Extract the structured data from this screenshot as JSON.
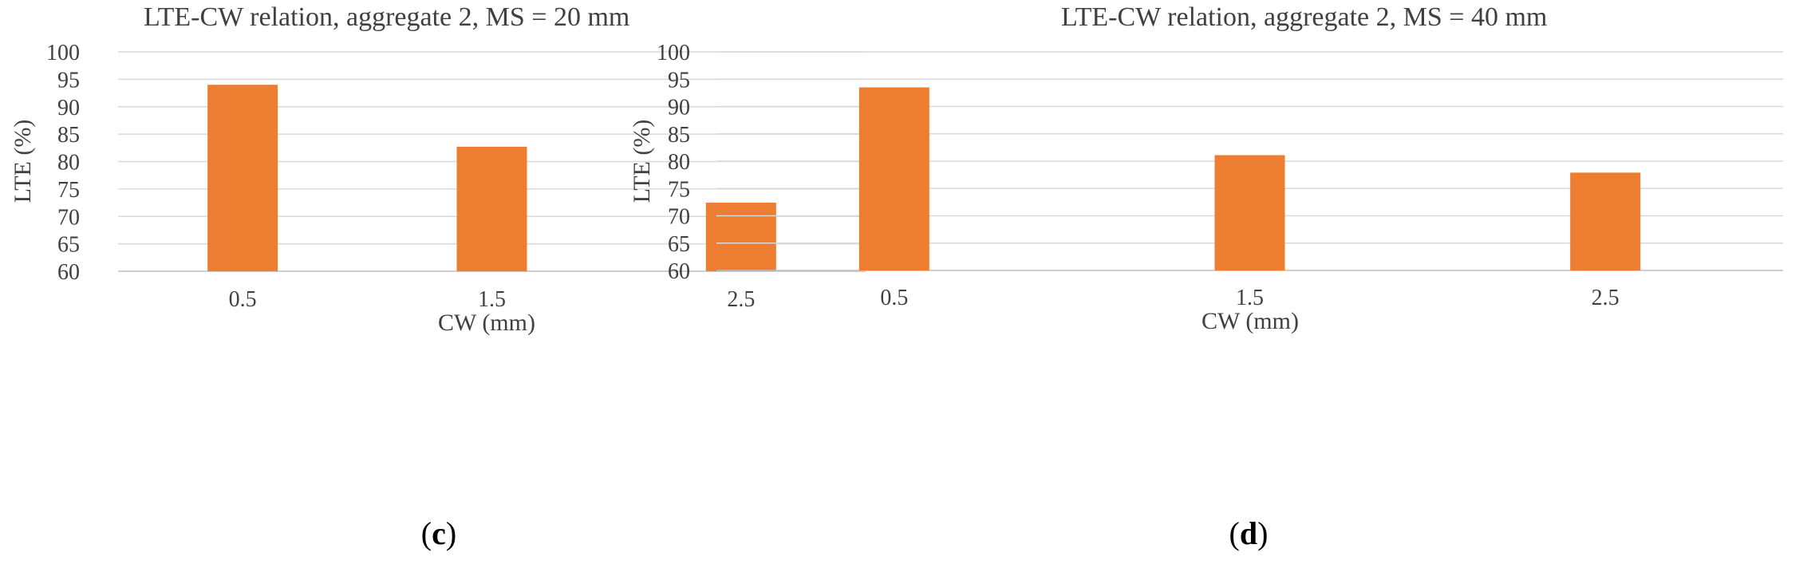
{
  "colors": {
    "bar": "#ED7D31",
    "grid": "#D9D9D9",
    "axis": "#BFBFBF",
    "text": "#404040"
  },
  "chart_data": [
    {
      "type": "bar",
      "title": "LTE-CW relation, aggregate 2, MS = 20 mm",
      "xlabel": "CW (mm)",
      "ylabel": "LTE (%)",
      "categories": [
        "0.5",
        "1.5",
        "2.5"
      ],
      "values": [
        94,
        82.7,
        72.5
      ],
      "ylim": [
        60,
        100
      ],
      "yticks": [
        "60",
        "65",
        "70",
        "75",
        "80",
        "85",
        "90",
        "95",
        "100"
      ],
      "grid": true,
      "panel_label": "c"
    },
    {
      "type": "bar",
      "title": "LTE-CW relation, aggregate 2, MS = 40 mm",
      "xlabel": "CW (mm)",
      "ylabel": "LTE (%)",
      "categories": [
        "0.5",
        "1.5",
        "2.5"
      ],
      "values": [
        93.5,
        81.1,
        77.9
      ],
      "ylim": [
        60,
        100
      ],
      "yticks": [
        "60",
        "65",
        "70",
        "75",
        "80",
        "85",
        "90",
        "95",
        "100"
      ],
      "grid": true,
      "panel_label": "d"
    }
  ]
}
